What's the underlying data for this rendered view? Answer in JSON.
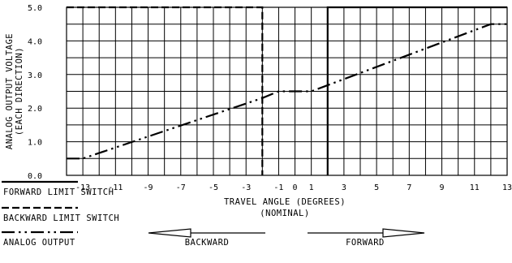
{
  "chart_data": {
    "type": "line",
    "title": "",
    "ylabel": [
      "ANALOG OUTPUT VOLTAGE",
      "(EACH DIRECTION)"
    ],
    "xlabel": [
      "TRAVEL ANGLE (DEGREES)",
      "(NOMINAL)"
    ],
    "xlim": [
      -14,
      13
    ],
    "ylim": [
      0,
      5
    ],
    "grid": true,
    "x_ticks": [
      -13,
      -11,
      -9,
      -7,
      -5,
      -3,
      -1,
      0,
      1,
      3,
      5,
      7,
      9,
      11,
      13
    ],
    "x_tick_labels": [
      "-13",
      "-11",
      "-9",
      "-7",
      "-5",
      "-3",
      "-1",
      "0",
      "1",
      "3",
      "5",
      "7",
      "9",
      "11",
      "13"
    ],
    "y_ticks": [
      0,
      1,
      2,
      3,
      4,
      5
    ],
    "y_tick_labels": [
      "0.0",
      "1.0",
      "2.0",
      "3.0",
      "4.0",
      "5.0"
    ],
    "series": [
      {
        "name": "FORWARD LIMIT SWITCH",
        "style": "solid",
        "x": [
          2,
          2,
          13
        ],
        "y": [
          0,
          5,
          5
        ]
      },
      {
        "name": "BACKWARD LIMIT SWITCH",
        "style": "dashed",
        "x": [
          -14,
          -2,
          -2
        ],
        "y": [
          5,
          5,
          0
        ]
      },
      {
        "name": "ANALOG OUTPUT",
        "style": "dash-dot-dot",
        "x": [
          -14,
          -13,
          -2,
          -1,
          1,
          12,
          13
        ],
        "y": [
          0.5,
          0.5,
          2.3,
          2.5,
          2.5,
          4.5,
          4.5
        ]
      }
    ],
    "legend_position": "bottom-left",
    "direction_arrows": {
      "backward_label": "BACKWARD",
      "forward_label": "FORWARD"
    }
  }
}
